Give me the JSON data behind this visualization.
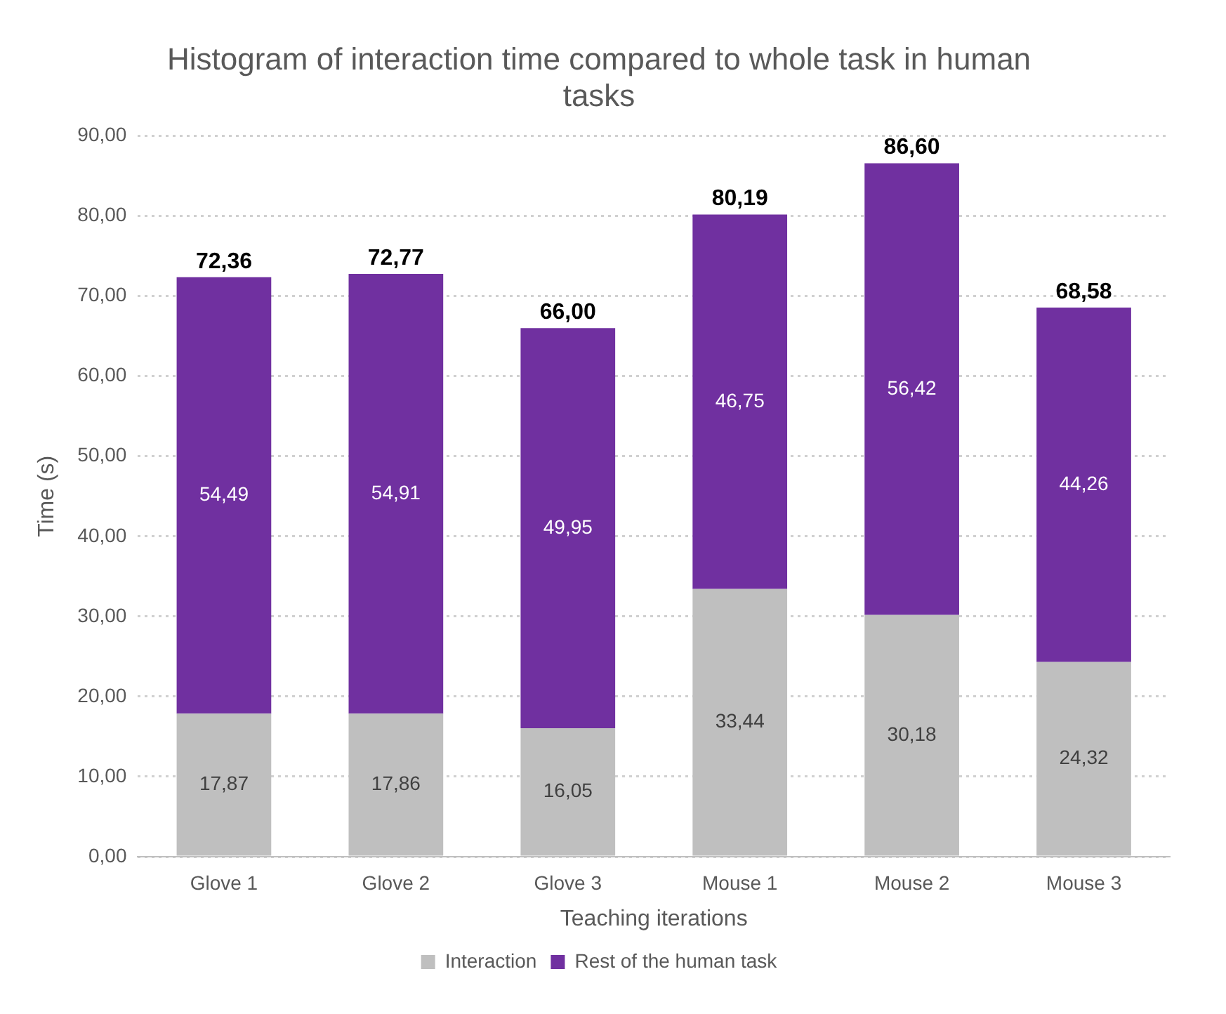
{
  "chart_data": {
    "type": "bar",
    "title": "Histogram of interaction time compared to whole task in human tasks",
    "xlabel": "Teaching iterations",
    "ylabel": "Time (s)",
    "categories": [
      "Glove 1",
      "Glove 2",
      "Glove 3",
      "Mouse 1",
      "Mouse 2",
      "Mouse 3"
    ],
    "stacked": true,
    "series": [
      {
        "name": "Interaction",
        "color": "#bfbfbf",
        "values": [
          17.87,
          17.86,
          16.05,
          33.44,
          30.18,
          24.32
        ],
        "value_labels": [
          "17,87",
          "17,86",
          "16,05",
          "33,44",
          "30,18",
          "24,32"
        ]
      },
      {
        "name": "Rest of the human task",
        "color": "#7030a0",
        "values": [
          54.49,
          54.91,
          49.95,
          46.75,
          56.42,
          44.26
        ],
        "value_labels": [
          "54,49",
          "54,91",
          "49,95",
          "46,75",
          "56,42",
          "44,26"
        ]
      }
    ],
    "totals": [
      "72,36",
      "72,77",
      "66,00",
      "80,19",
      "86,60",
      "68,58"
    ],
    "ylim": [
      0,
      90
    ],
    "yticks": [
      {
        "value": 0,
        "label": "0,00"
      },
      {
        "value": 10,
        "label": "10,00"
      },
      {
        "value": 20,
        "label": "20,00"
      },
      {
        "value": 30,
        "label": "30,00"
      },
      {
        "value": 40,
        "label": "40,00"
      },
      {
        "value": 50,
        "label": "50,00"
      },
      {
        "value": 60,
        "label": "60,00"
      },
      {
        "value": 70,
        "label": "70,00"
      },
      {
        "value": 80,
        "label": "80,00"
      },
      {
        "value": 90,
        "label": "90,00"
      }
    ],
    "grid": "y",
    "legend": "bottom"
  }
}
